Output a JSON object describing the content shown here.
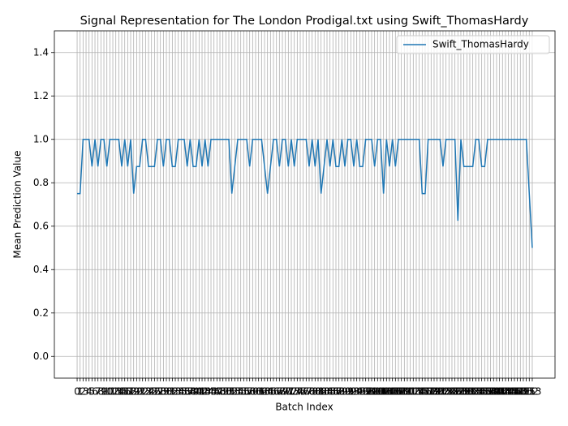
{
  "chart_data": {
    "type": "line",
    "title": "Signal Representation for The London Prodigal.txt using Swift_ThomasHardy",
    "xlabel": "Batch Index",
    "ylabel": "Mean Prediction Value",
    "x": [
      0,
      1,
      2,
      3,
      4,
      5,
      6,
      7,
      8,
      9,
      10,
      11,
      12,
      13,
      14,
      15,
      16,
      17,
      18,
      19,
      20,
      21,
      22,
      23,
      24,
      25,
      26,
      27,
      28,
      29,
      30,
      31,
      32,
      33,
      34,
      35,
      36,
      37,
      38,
      39,
      40,
      41,
      42,
      43,
      44,
      45,
      46,
      47,
      48,
      49,
      50,
      51,
      52,
      53,
      54,
      55,
      56,
      57,
      58,
      59,
      60,
      61,
      62,
      63,
      64,
      65,
      66,
      67,
      68,
      69,
      70,
      71,
      72,
      73,
      74,
      75,
      76,
      77,
      78,
      79,
      80,
      81,
      82,
      83,
      84,
      85,
      86,
      87,
      88,
      89,
      90,
      91,
      92,
      93,
      94,
      95,
      96,
      97,
      98,
      99,
      100,
      101,
      102,
      103,
      104,
      105,
      106,
      107,
      108,
      109,
      110,
      111,
      112,
      113,
      114,
      115,
      116,
      117,
      118,
      119,
      120,
      121,
      122,
      123,
      124,
      125,
      126,
      127,
      128,
      129,
      130,
      131,
      132,
      133,
      134,
      135,
      136,
      137,
      138,
      139,
      140,
      141,
      142,
      143,
      144,
      145,
      146,
      147,
      148,
      149,
      150,
      151,
      152,
      153
    ],
    "series": [
      {
        "name": "Swift_ThomasHardy",
        "color": "#1f77b4",
        "values": [
          0.75,
          0.75,
          1,
          1,
          1,
          0.875,
          1,
          0.875,
          1,
          1,
          0.875,
          1,
          1,
          1,
          1,
          0.875,
          1,
          0.875,
          1,
          0.75,
          0.875,
          0.875,
          1,
          1,
          0.875,
          0.875,
          0.875,
          1,
          1,
          0.875,
          1,
          1,
          0.875,
          0.875,
          1,
          1,
          1,
          0.875,
          1,
          0.875,
          0.875,
          1,
          0.875,
          1,
          0.875,
          1,
          1,
          1,
          1,
          1,
          1,
          1,
          0.75,
          0.875,
          1,
          1,
          1,
          1,
          0.875,
          1,
          1,
          1,
          1,
          0.875,
          0.75,
          0.875,
          1,
          1,
          0.875,
          1,
          1,
          0.875,
          1,
          0.875,
          1,
          1,
          1,
          1,
          0.875,
          1,
          0.875,
          1,
          0.75,
          0.875,
          1,
          0.875,
          1,
          0.875,
          0.875,
          1,
          0.875,
          1,
          1,
          0.875,
          1,
          0.875,
          0.875,
          1,
          1,
          1,
          0.875,
          1,
          1,
          0.75,
          1,
          0.875,
          1,
          0.875,
          1,
          1,
          1,
          1,
          1,
          1,
          1,
          1,
          0.75,
          0.75,
          1,
          1,
          1,
          1,
          1,
          0.875,
          1,
          1,
          1,
          1,
          0.625,
          1,
          0.875,
          0.875,
          0.875,
          0.875,
          1,
          1,
          0.875,
          0.875,
          1,
          1,
          1,
          1,
          1,
          1,
          1,
          1,
          1,
          1,
          1,
          1,
          1,
          1,
          0.75,
          0.5
        ]
      }
    ],
    "xlim": [
      -7.65,
      160.65
    ],
    "xticks": [
      0,
      1,
      2,
      3,
      4,
      5,
      6,
      7,
      8,
      9,
      10,
      11,
      12,
      13,
      14,
      15,
      16,
      17,
      18,
      19,
      20,
      21,
      22,
      23,
      24,
      25,
      26,
      27,
      28,
      29,
      30,
      31,
      32,
      33,
      34,
      35,
      36,
      37,
      38,
      39,
      40,
      41,
      42,
      43,
      44,
      45,
      46,
      47,
      48,
      49,
      50,
      51,
      52,
      53,
      54,
      55,
      56,
      57,
      58,
      59,
      60,
      61,
      62,
      63,
      64,
      65,
      66,
      67,
      68,
      69,
      70,
      71,
      72,
      73,
      74,
      75,
      76,
      77,
      78,
      79,
      80,
      81,
      82,
      83,
      84,
      85,
      86,
      87,
      88,
      89,
      90,
      91,
      92,
      93,
      94,
      95,
      96,
      97,
      98,
      99,
      100,
      101,
      102,
      103,
      104,
      105,
      106,
      107,
      108,
      109,
      110,
      111,
      112,
      113,
      114,
      115,
      116,
      117,
      118,
      119,
      120,
      121,
      122,
      123,
      124,
      125,
      126,
      127,
      128,
      129,
      130,
      131,
      132,
      133,
      134,
      135,
      136,
      137,
      138,
      139,
      140,
      141,
      142,
      143,
      144,
      145,
      146,
      147,
      148,
      149,
      150,
      151,
      152,
      153
    ],
    "ylim": [
      -0.1,
      1.5
    ],
    "yticks": [
      {
        "value": 0,
        "label": "0.0"
      },
      0.2,
      0.4,
      0.6,
      0.8,
      {
        "value": 1,
        "label": "1.0"
      },
      1.2,
      1.4
    ],
    "grid": true,
    "legend": "upper right"
  }
}
